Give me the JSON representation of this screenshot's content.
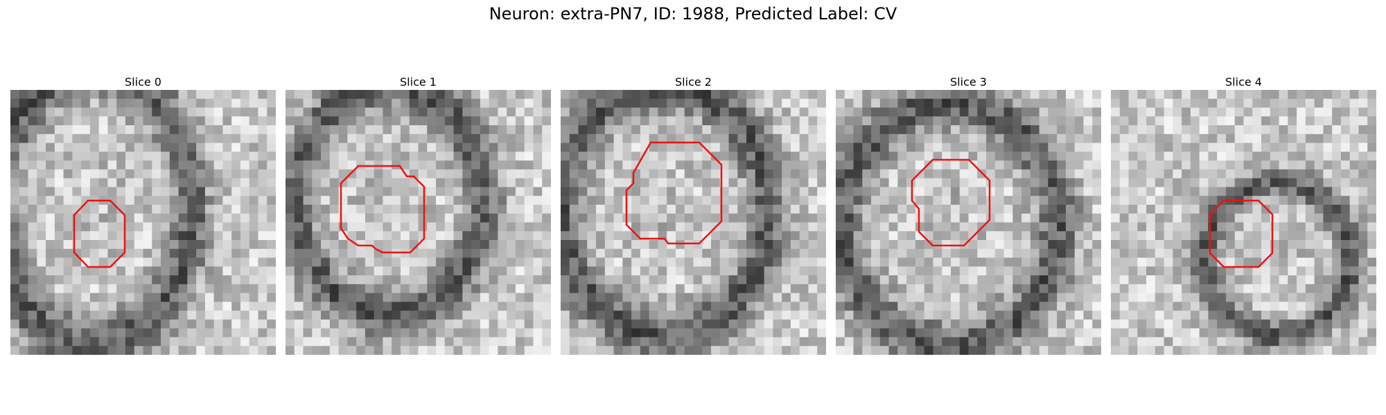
{
  "figure": {
    "title": "Neuron: extra-PN7, ID: 1988, Predicted Label: CV"
  },
  "panels": [
    {
      "title": "Slice 0"
    },
    {
      "title": "Slice 1"
    },
    {
      "title": "Slice 2"
    },
    {
      "title": "Slice 3"
    },
    {
      "title": "Slice 4"
    }
  ],
  "colors": {
    "contour": "#ee1111",
    "background": "#ffffff"
  }
}
